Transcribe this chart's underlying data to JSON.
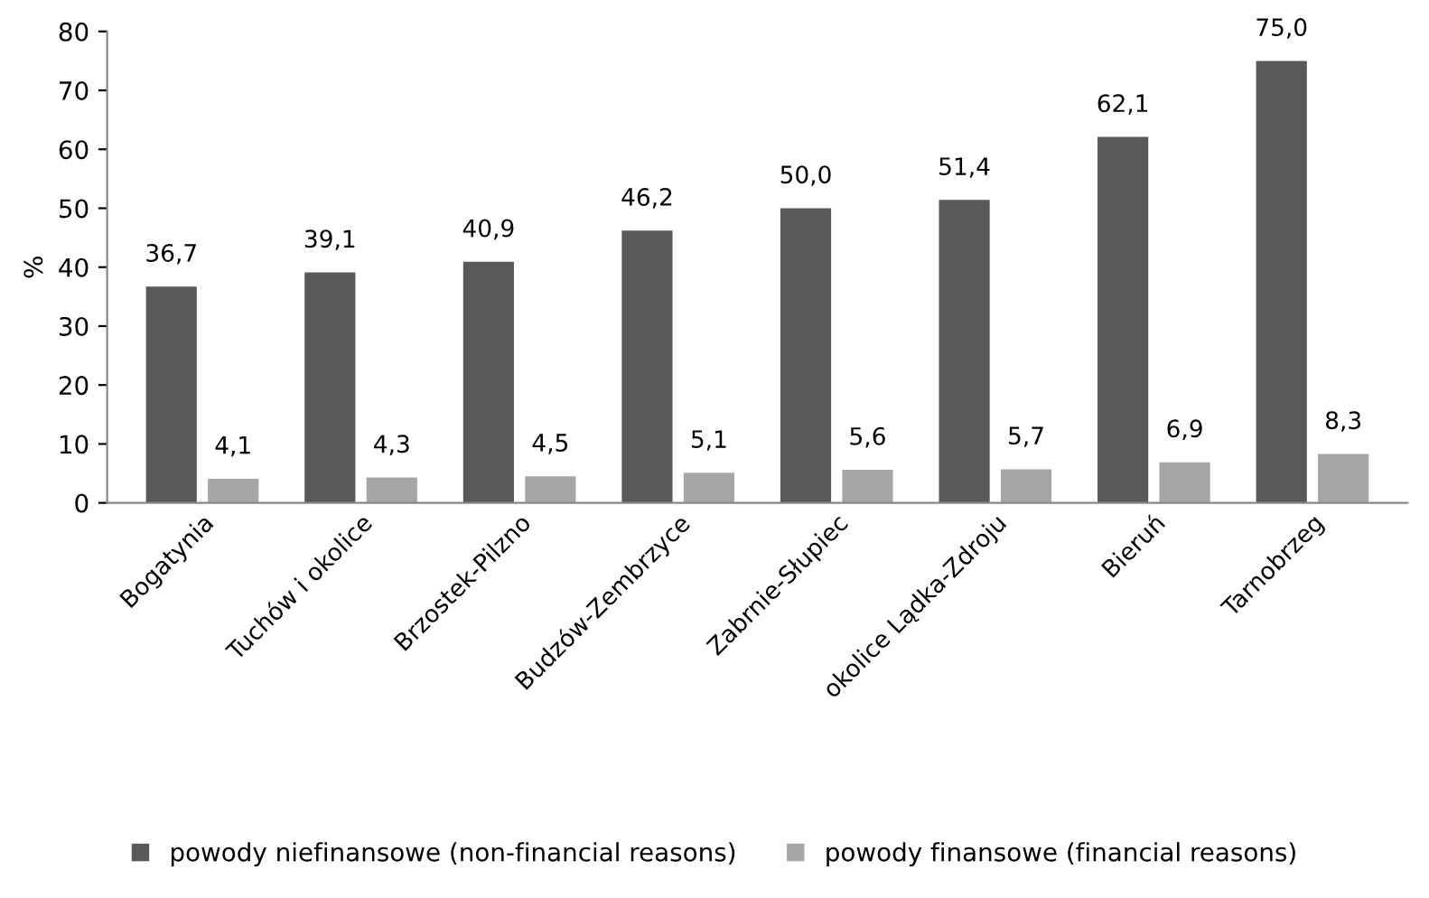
{
  "chart_data": {
    "type": "bar",
    "ylabel": "%",
    "categories": [
      "Bogatynia",
      "Tuchów i okolice",
      "Brzostek-Pilzno",
      "Budzów-Zembrzyce",
      "Zabrnie-Słupiec",
      "okolice Lądka-Zdroju",
      "Bieruń",
      "Tarnobrzeg"
    ],
    "series": [
      {
        "name": "powody niefinansowe (non-financial reasons)",
        "color": "#595959",
        "values": [
          36.7,
          39.1,
          40.9,
          46.2,
          50.0,
          51.4,
          62.1,
          75.0
        ],
        "value_labels": [
          "36,7",
          "39,1",
          "40,9",
          "46,2",
          "50,0",
          "51,4",
          "62,1",
          "75,0"
        ]
      },
      {
        "name": "powody finansowe (financial reasons)",
        "color": "#a6a6a6",
        "values": [
          4.1,
          4.3,
          4.5,
          5.1,
          5.6,
          5.7,
          6.9,
          8.3
        ],
        "value_labels": [
          "4,1",
          "4,3",
          "4,5",
          "5,1",
          "5,6",
          "5,7",
          "6,9",
          "8,3"
        ]
      }
    ],
    "ylim": [
      0,
      80
    ],
    "yticks": [
      0,
      10,
      20,
      30,
      40,
      50,
      60,
      70,
      80
    ],
    "grid": false,
    "legend": "bottom"
  }
}
